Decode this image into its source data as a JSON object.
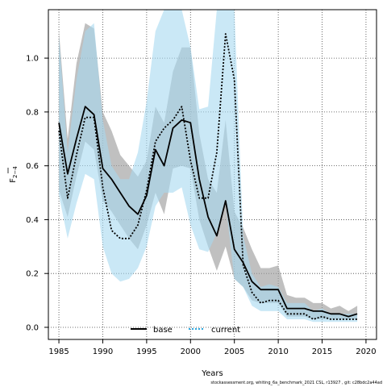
{
  "chart_data": {
    "type": "line",
    "xlabel": "Years",
    "ylabel": "F",
    "ylabel_sub": "2−4",
    "xlim": [
      1983.8,
      2021.2
    ],
    "ylim": [
      -0.045,
      1.18
    ],
    "xticks": [
      1985,
      1990,
      1995,
      2000,
      2005,
      2010,
      2015,
      2020
    ],
    "yticks": [
      0.0,
      0.2,
      0.4,
      0.6,
      0.8,
      1.0
    ],
    "ytick_labels": [
      "0.0",
      "0.2",
      "0.4",
      "0.6",
      "0.8",
      "1.0"
    ],
    "grid": true,
    "legend_position": "bottom-center",
    "x": [
      1985,
      1986,
      1987,
      1988,
      1989,
      1990,
      1991,
      1992,
      1993,
      1994,
      1995,
      1996,
      1997,
      1998,
      1999,
      2000,
      2001,
      2002,
      2003,
      2004,
      2005,
      2006,
      2007,
      2008,
      2009,
      2010,
      2011,
      2012,
      2013,
      2014,
      2015,
      2016,
      2017,
      2018,
      2019
    ],
    "series": [
      {
        "name": "base",
        "color": "#000000",
        "band_color": "#9e9e9e",
        "line_style": "solid",
        "values": [
          0.76,
          0.57,
          0.7,
          0.82,
          0.79,
          0.59,
          0.55,
          0.5,
          0.45,
          0.42,
          0.49,
          0.66,
          0.6,
          0.74,
          0.77,
          0.76,
          0.55,
          0.41,
          0.34,
          0.47,
          0.29,
          0.24,
          0.17,
          0.14,
          0.14,
          0.14,
          0.07,
          0.07,
          0.07,
          0.06,
          0.06,
          0.05,
          0.05,
          0.04,
          0.05
        ],
        "lower": [
          0.51,
          0.41,
          0.56,
          0.69,
          0.66,
          0.47,
          0.43,
          0.38,
          0.33,
          0.29,
          0.38,
          0.5,
          0.42,
          0.59,
          0.6,
          0.59,
          0.4,
          0.3,
          0.21,
          0.3,
          0.18,
          0.15,
          0.1,
          0.09,
          0.09,
          0.09,
          0.04,
          0.04,
          0.04,
          0.03,
          0.03,
          0.03,
          0.03,
          0.03,
          0.03
        ],
        "upper": [
          1.1,
          0.7,
          0.98,
          1.13,
          1.11,
          0.8,
          0.73,
          0.64,
          0.6,
          0.56,
          0.62,
          0.82,
          0.76,
          0.95,
          1.04,
          1.04,
          0.72,
          0.55,
          0.5,
          0.77,
          0.43,
          0.37,
          0.29,
          0.22,
          0.22,
          0.23,
          0.12,
          0.11,
          0.11,
          0.09,
          0.09,
          0.07,
          0.08,
          0.06,
          0.08
        ]
      },
      {
        "name": "current",
        "color": "#2ea8df",
        "band_color": "#a6d8f0",
        "line_style": "dotted",
        "values": [
          0.73,
          0.48,
          0.64,
          0.78,
          0.78,
          0.52,
          0.36,
          0.33,
          0.33,
          0.38,
          0.51,
          0.69,
          0.74,
          0.77,
          0.82,
          0.62,
          0.48,
          0.48,
          0.65,
          1.09,
          0.92,
          0.23,
          0.13,
          0.09,
          0.1,
          0.1,
          0.05,
          0.05,
          0.05,
          0.03,
          0.04,
          0.03,
          0.03,
          0.03,
          0.03
        ],
        "lower": [
          0.49,
          0.33,
          0.46,
          0.57,
          0.55,
          0.3,
          0.2,
          0.17,
          0.18,
          0.22,
          0.3,
          0.45,
          0.5,
          0.5,
          0.52,
          0.38,
          0.29,
          0.28,
          0.35,
          0.46,
          0.18,
          0.15,
          0.08,
          0.06,
          0.06,
          0.06,
          0.03,
          0.03,
          0.03,
          0.02,
          0.02,
          0.02,
          0.02,
          0.02,
          0.02
        ],
        "upper": [
          1.08,
          0.65,
          0.92,
          1.1,
          1.13,
          0.77,
          0.6,
          0.55,
          0.55,
          0.65,
          0.84,
          1.1,
          1.18,
          1.18,
          1.18,
          1.04,
          0.81,
          0.82,
          1.18,
          1.18,
          1.18,
          0.34,
          0.2,
          0.15,
          0.16,
          0.15,
          0.09,
          0.09,
          0.09,
          0.06,
          0.07,
          0.05,
          0.05,
          0.05,
          0.05
        ]
      }
    ]
  },
  "footer_text": "stockassessment.org, whiting_6a_benchmark_2021 CSL, r13927 , git: c28bdc2a44ad"
}
